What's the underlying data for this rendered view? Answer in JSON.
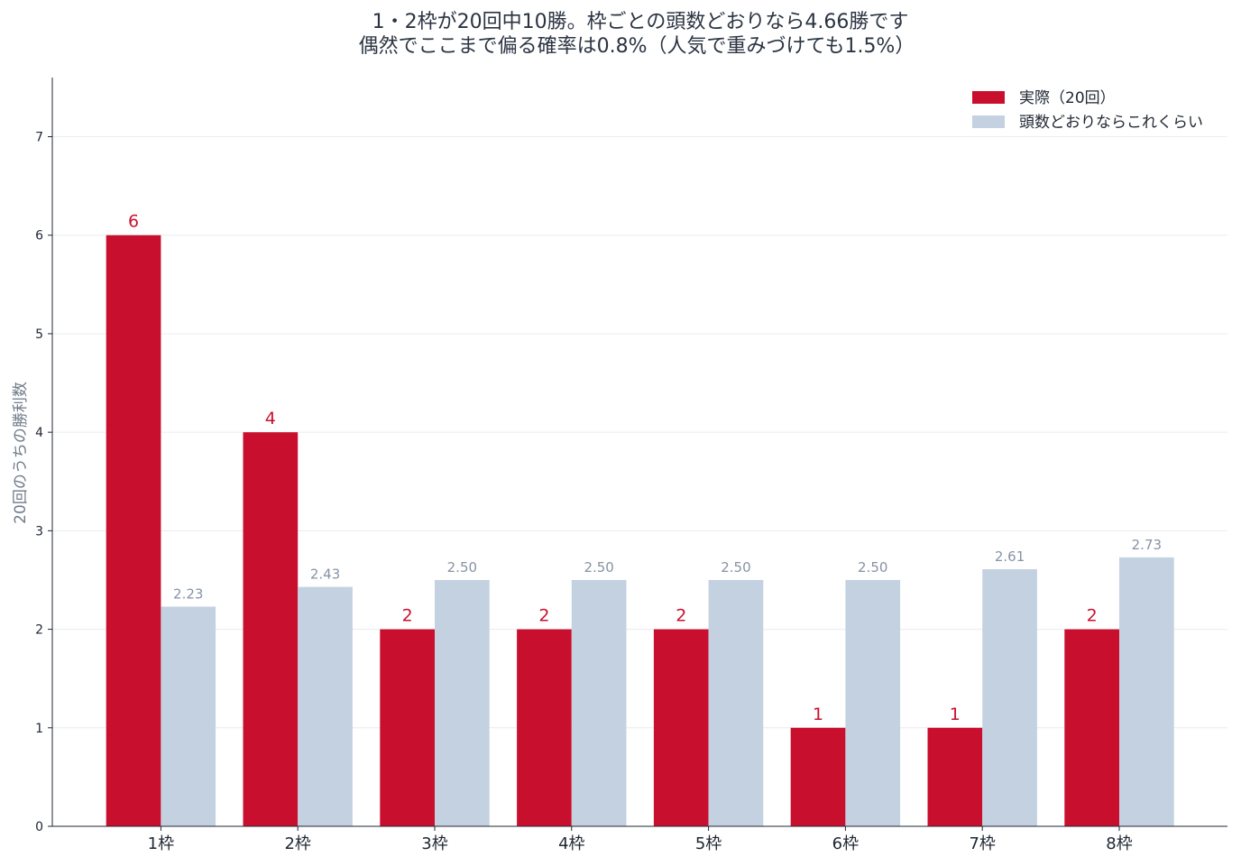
{
  "chart_data": {
    "type": "bar",
    "title_lines": [
      "1・2枠が20回中10勝。枠ごとの頭数どおりなら4.66勝です",
      "偶然でここまで偏る確率は0.8%（人気で重みづけても1.5%）"
    ],
    "xlabel": "",
    "ylabel": "20回のうちの勝利数",
    "categories": [
      "1枠",
      "2枠",
      "3枠",
      "4枠",
      "5枠",
      "6枠",
      "7枠",
      "8枠"
    ],
    "series": [
      {
        "name": "実際（20回）",
        "color": "#c8102e",
        "values": [
          6,
          4,
          2,
          2,
          2,
          1,
          1,
          2
        ],
        "labels": [
          "6",
          "4",
          "2",
          "2",
          "2",
          "1",
          "1",
          "2"
        ]
      },
      {
        "name": "頭数どおりならこれくらい",
        "color": "#c4d1e1",
        "values": [
          2.23,
          2.43,
          2.5,
          2.5,
          2.5,
          2.5,
          2.61,
          2.73
        ],
        "labels": [
          "2.23",
          "2.43",
          "2.50",
          "2.50",
          "2.50",
          "2.50",
          "2.61",
          "2.73"
        ]
      }
    ],
    "ylim": [
      0,
      7.6
    ],
    "yticks": [
      "0",
      "1",
      "2",
      "3",
      "4",
      "5",
      "6",
      "7"
    ],
    "grid": true,
    "legend_position": "top-right"
  }
}
